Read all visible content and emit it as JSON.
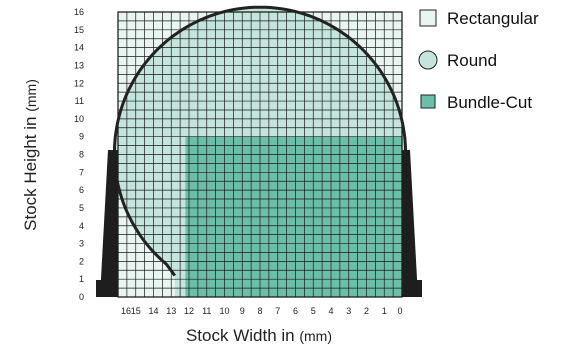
{
  "chart_data": {
    "type": "area",
    "title": "",
    "xlabel": "Stock Width in",
    "xlabel_unit": "(mm)",
    "ylabel": "Stock Height in",
    "ylabel_unit": "(mm)",
    "x_ticks": [
      "16",
      "15",
      "14",
      "13",
      "12",
      "11",
      "10",
      "9",
      "8",
      "7",
      "6",
      "5",
      "4",
      "3",
      "2",
      "1",
      "0"
    ],
    "y_ticks": [
      "0",
      "1",
      "2",
      "3",
      "4",
      "5",
      "6",
      "7",
      "8",
      "9",
      "10",
      "11",
      "12",
      "13",
      "14",
      "15",
      "16"
    ],
    "xlim": [
      16,
      0
    ],
    "ylim": [
      0,
      16
    ],
    "grid": true,
    "legend_position": "right",
    "series": [
      {
        "name": "Rectangular",
        "shape": "square",
        "color": "#e8f5f1",
        "region": {
          "x_from": 16,
          "x_to": 0,
          "y_from": 0,
          "y_to": 16
        }
      },
      {
        "name": "Round",
        "shape": "circle",
        "color": "#c4e5dd",
        "region": {
          "center_x": 8,
          "center_y": 8.1,
          "radius": 8.2,
          "cut_below_y": 1.2
        }
      },
      {
        "name": "Bundle-Cut",
        "shape": "square",
        "color": "#6bbfa8",
        "region": {
          "x_from": 12.2,
          "x_to": 0,
          "y_from": 0,
          "y_to": 9
        }
      }
    ],
    "legend": [
      "Rectangular",
      "Round",
      "Bundle-Cut"
    ]
  }
}
